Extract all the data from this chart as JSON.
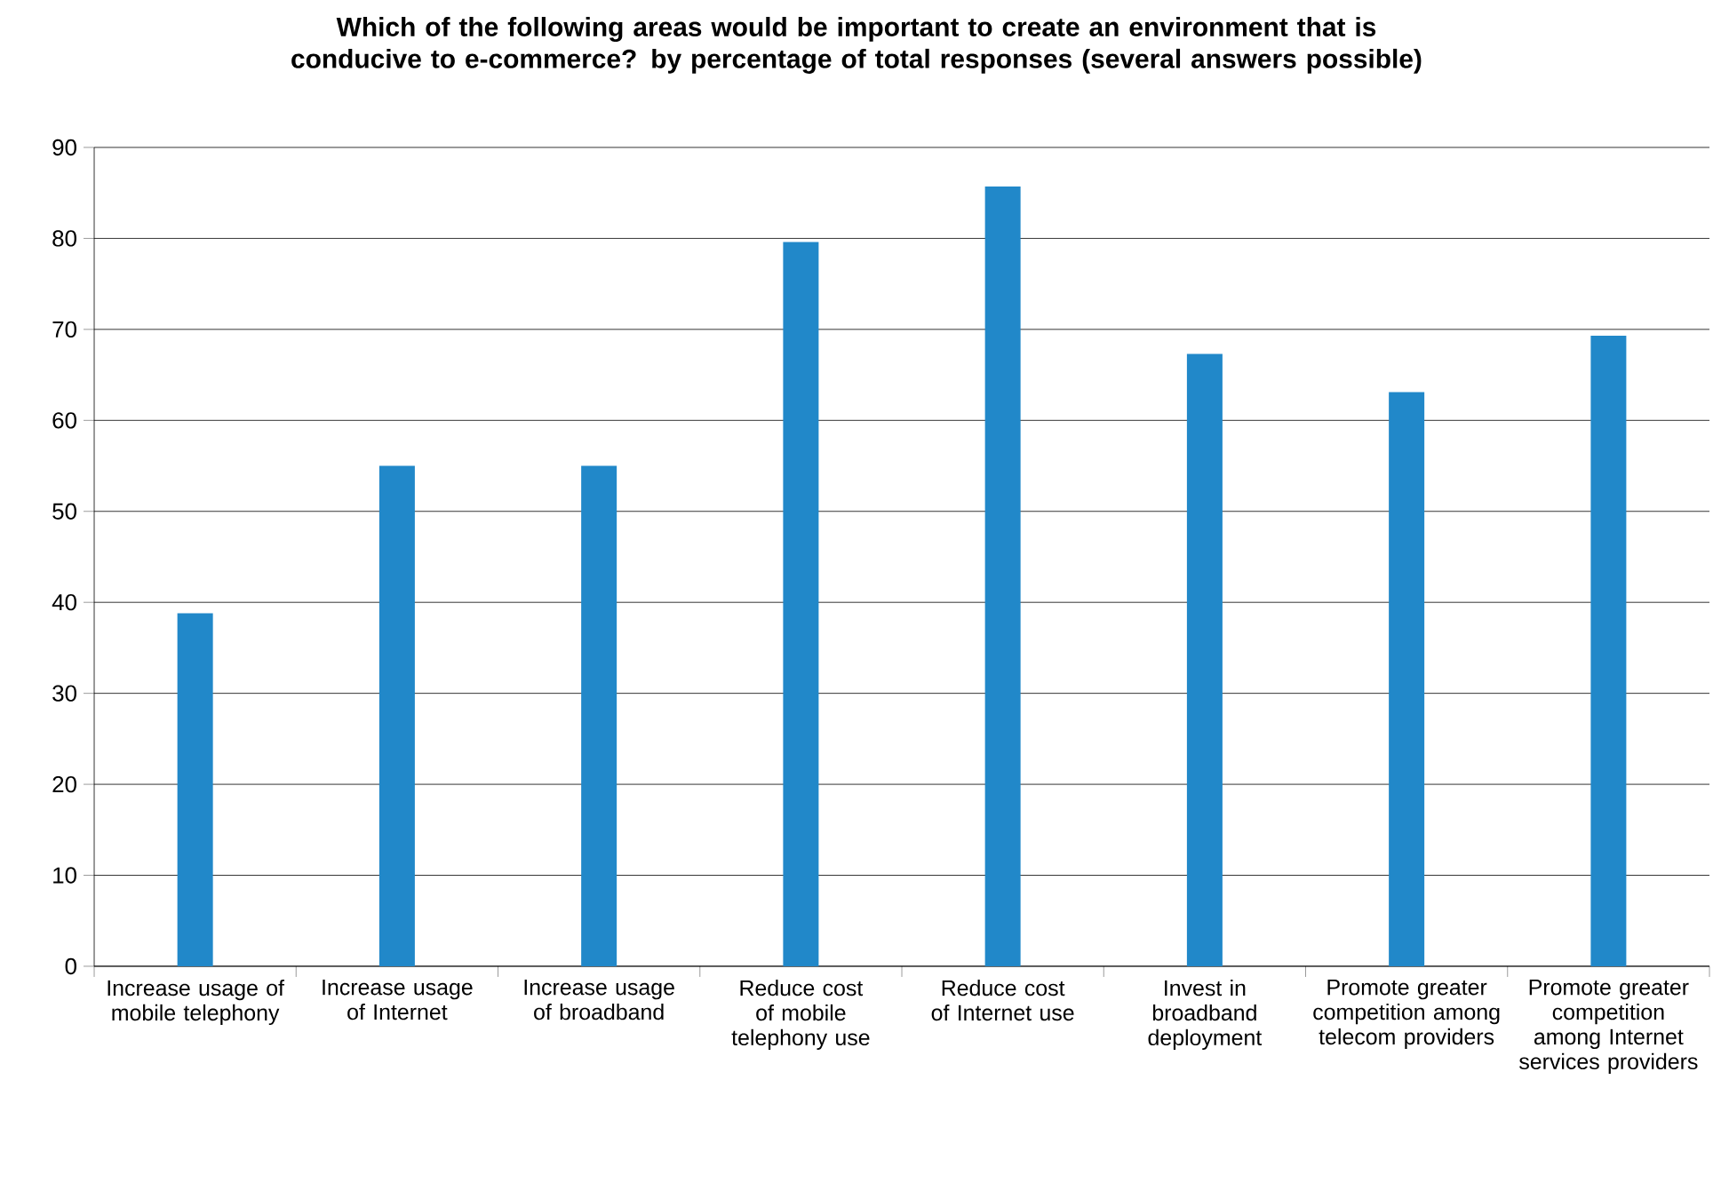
{
  "chart_data": {
    "type": "bar",
    "title": "Which of the following areas would be important to create an environment that is conducive to e-commerce? by percentage of total responses (several answers possible)",
    "categories": [
      "Increase usage of mobile telephony",
      "Increase usage of Internet",
      "Increase usage of broadband",
      "Reduce cost of mobile telephony use",
      "Reduce cost of Internet use",
      "Invest in broadband deployment",
      "Promote greater competition among telecom providers",
      "Promote greater competition among Internet services providers"
    ],
    "values": [
      38.8,
      55,
      55,
      79.6,
      85.7,
      67.3,
      63.1,
      69.3
    ],
    "color": "#2188c9",
    "ylim": [
      0,
      90
    ],
    "yticks": [
      0,
      10,
      20,
      30,
      40,
      50,
      60,
      70,
      80,
      90
    ],
    "grid": "y"
  }
}
